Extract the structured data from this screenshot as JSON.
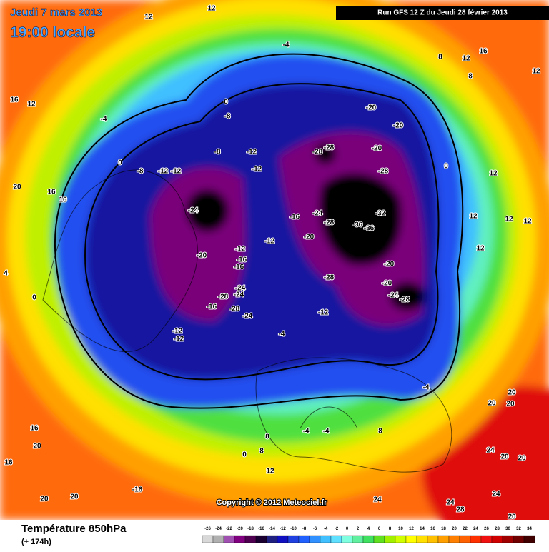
{
  "header": {
    "date": "Jeudi 7 mars 2013",
    "time": "19:00 locale",
    "run": "Run GFS 12 Z du Jeudi 28 février 2013",
    "copyright": "Copyright © 2012 Meteociel.fr"
  },
  "map": {
    "labels": [
      12,
      12,
      -4,
      8,
      12,
      16,
      8,
      12,
      16,
      12,
      -4,
      0,
      -8,
      -20,
      -20,
      -8,
      -12,
      -28,
      -28,
      -20,
      -28,
      -12,
      -12,
      -12,
      -8,
      0,
      0,
      12,
      20,
      16,
      16,
      -24,
      -16,
      -24,
      -28,
      -32,
      -36,
      -36,
      -12,
      -20,
      -12,
      -16,
      -16,
      -20,
      12,
      12,
      12,
      -28,
      -20,
      12,
      -24,
      -24,
      -28,
      -24,
      -28,
      -20,
      -16,
      -28,
      -24,
      -12,
      -12,
      -12,
      -4,
      0,
      4,
      -4,
      20,
      20,
      20,
      16,
      20,
      16,
      20,
      20,
      -16,
      12,
      8,
      -4,
      -4,
      8,
      24,
      20,
      20,
      24,
      24,
      24,
      28,
      20,
      0,
      8
    ]
  },
  "legend": {
    "title": "Température 850hPa",
    "subtitle": "(+ 174h)",
    "ticks": [
      -26,
      -24,
      -22,
      -20,
      -18,
      -16,
      -14,
      -12,
      -10,
      -8,
      -6,
      -4,
      -2,
      0,
      2,
      4,
      6,
      8,
      10,
      12,
      14,
      16,
      18,
      20,
      22,
      24,
      26,
      28,
      30,
      32,
      34
    ],
    "colors": [
      "#d8d8d8",
      "#b0b0b0",
      "#a050b0",
      "#800080",
      "#500050",
      "#1a0030",
      "#202080",
      "#1010c0",
      "#2040e0",
      "#2060ff",
      "#3090ff",
      "#40c0ff",
      "#60e0ff",
      "#80ffe0",
      "#60f0a0",
      "#40e060",
      "#60e020",
      "#a0f000",
      "#d0ff00",
      "#ffff00",
      "#ffe000",
      "#ffc000",
      "#ffa000",
      "#ff8000",
      "#ff6000",
      "#ff3000",
      "#f01010",
      "#d00000",
      "#a00000",
      "#700000",
      "#400000"
    ]
  }
}
